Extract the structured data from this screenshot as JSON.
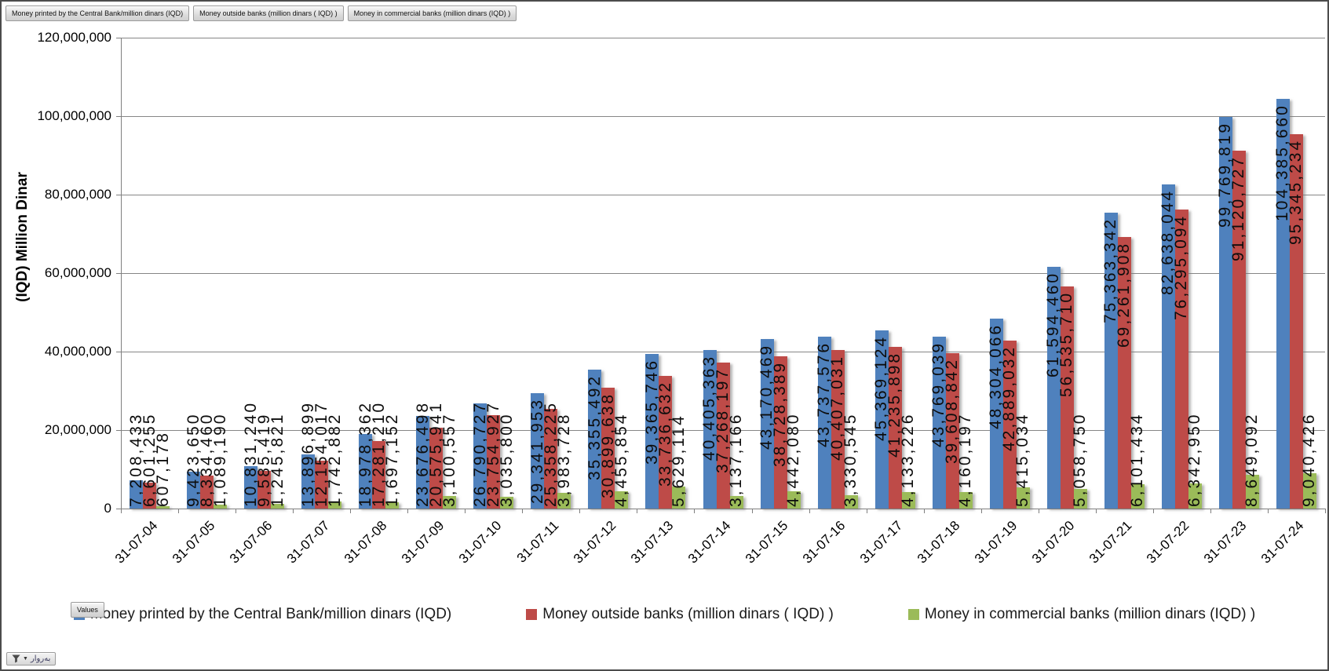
{
  "pivot_buttons": [
    {
      "label": "Money printed by the Central Bank/million dinars (IQD)"
    },
    {
      "label": "Money outside banks (million dinars ( IQD) )"
    },
    {
      "label": "Money in commercial banks (million dinars (IQD) )"
    }
  ],
  "values_button_label": "Values",
  "axis_filter_button": {
    "label": "بەروار"
  },
  "chart_data": {
    "type": "bar",
    "title": "",
    "xlabel": "",
    "ylabel": "(IQD) Million Dinar",
    "ylim": [
      0,
      120000000
    ],
    "ytick_step": 20000000,
    "ytick_labels": [
      "0",
      "20,000,000",
      "40,000,000",
      "60,000,000",
      "80,000,000",
      "100,000,000",
      "120,000,000"
    ],
    "grid": true,
    "legend_position": "bottom",
    "data_label_rotation": -90,
    "categories": [
      "31-07-04",
      "31-07-05",
      "31-07-06",
      "31-07-07",
      "31-07-08",
      "31-07-09",
      "31-07-10",
      "31-07-11",
      "31-07-12",
      "31-07-13",
      "31-07-14",
      "31-07-15",
      "31-07-16",
      "31-07-17",
      "31-07-18",
      "31-07-19",
      "31-07-20",
      "31-07-21",
      "31-07-22",
      "31-07-23",
      "31-07-24"
    ],
    "series": [
      {
        "name": "Money printed by the Central Bank/million dinars (IQD)",
        "color": "#4F81BD",
        "values": [
          7208433,
          9423650,
          10831240,
          13896899,
          18978362,
          23676498,
          26790727,
          29341953,
          35355492,
          39365746,
          40405363,
          43170469,
          43737576,
          45369124,
          43769039,
          48304066,
          61594460,
          75363342,
          82638044,
          99769819,
          104385660
        ]
      },
      {
        "name": "Money outside banks (million dinars ( IQD) )",
        "color": "#BE4B48",
        "values": [
          6601255,
          8334460,
          9585419,
          12154017,
          17281210,
          20575941,
          23754927,
          25358225,
          30899638,
          33736632,
          37268197,
          38728389,
          40407031,
          41235898,
          39608842,
          42889032,
          56535710,
          69261908,
          76295094,
          91120727,
          95345234
        ]
      },
      {
        "name": "Money in commercial banks (million dinars (IQD) )",
        "color": "#9BBB59",
        "values": [
          607178,
          1089190,
          1245821,
          1742882,
          1697152,
          3100557,
          3035800,
          3983728,
          4455854,
          5629114,
          3137166,
          4442080,
          3330545,
          4133226,
          4160197,
          5415034,
          5058750,
          6101434,
          6342950,
          8649092,
          9040426
        ]
      }
    ]
  },
  "colors": {
    "gridline": "#868686",
    "axis": "#7f7f7f",
    "data_label": "#0d0d0d"
  }
}
